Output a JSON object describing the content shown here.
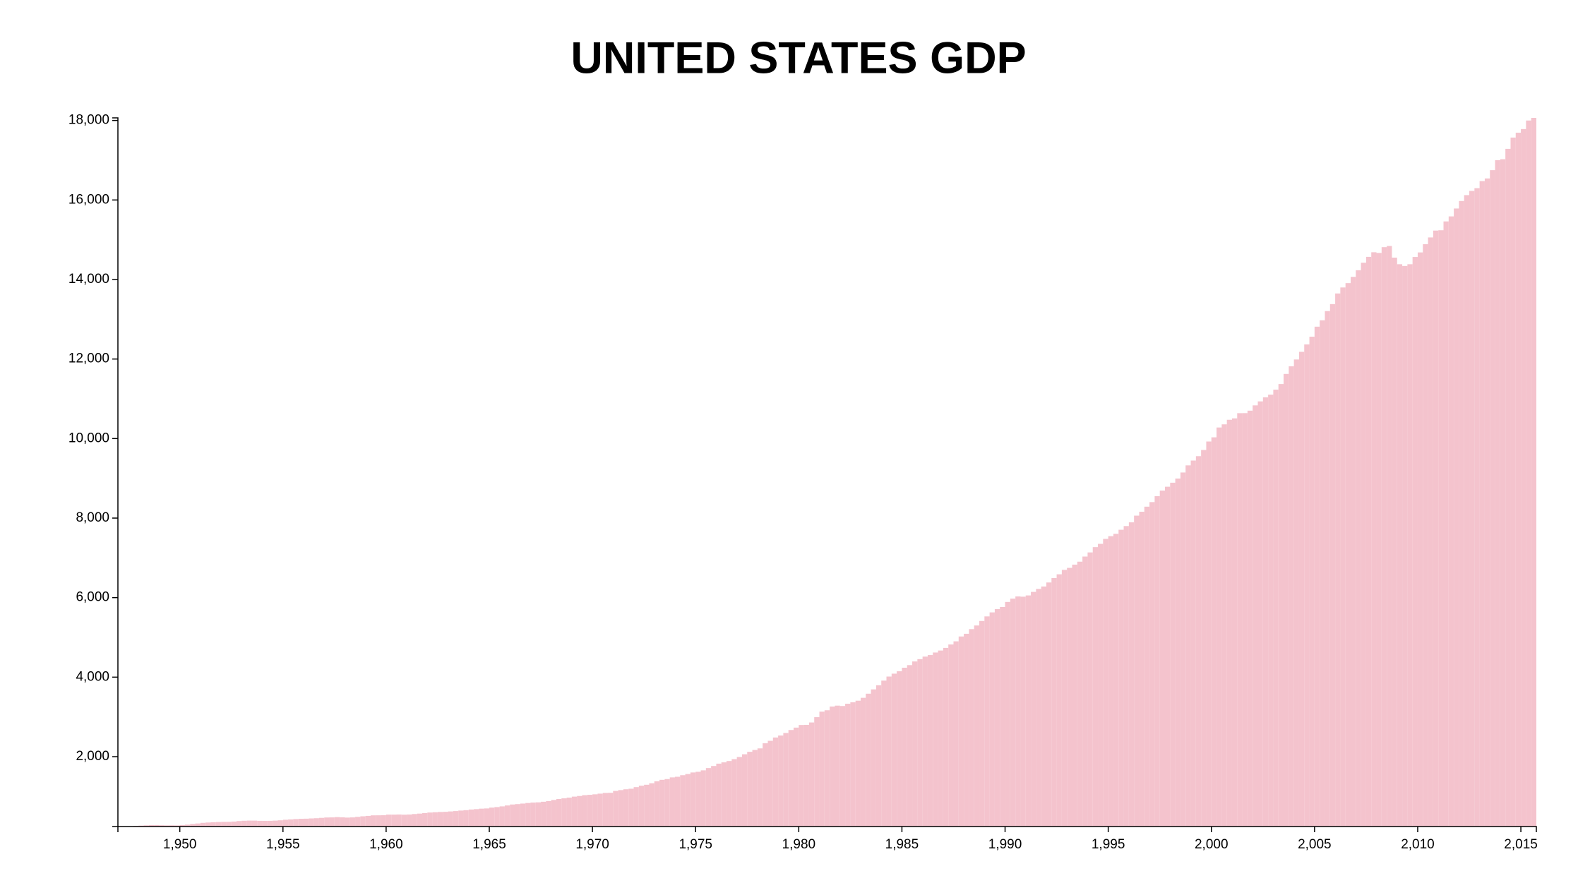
{
  "chart_data": {
    "type": "bar",
    "title": "UNITED STATES GDP",
    "color": "#f4c3cd",
    "xlim": [
      1947,
      2015.75
    ],
    "ylim": [
      243.1,
      18064.7
    ],
    "xticks": [
      {
        "value": 1950,
        "label": "1,950"
      },
      {
        "value": 1955,
        "label": "1,955"
      },
      {
        "value": 1960,
        "label": "1,960"
      },
      {
        "value": 1965,
        "label": "1,965"
      },
      {
        "value": 1970,
        "label": "1,970"
      },
      {
        "value": 1975,
        "label": "1,975"
      },
      {
        "value": 1980,
        "label": "1,980"
      },
      {
        "value": 1985,
        "label": "1,985"
      },
      {
        "value": 1990,
        "label": "1,990"
      },
      {
        "value": 1995,
        "label": "1,995"
      },
      {
        "value": 2000,
        "label": "2,000"
      },
      {
        "value": 2005,
        "label": "2,005"
      },
      {
        "value": 2010,
        "label": "2,010"
      },
      {
        "value": 2015,
        "label": "2,015"
      }
    ],
    "yticks": [
      {
        "value": 2000,
        "label": "2,000"
      },
      {
        "value": 4000,
        "label": "4,000"
      },
      {
        "value": 6000,
        "label": "6,000"
      },
      {
        "value": 8000,
        "label": "8,000"
      },
      {
        "value": 10000,
        "label": "10,000"
      },
      {
        "value": 12000,
        "label": "12,000"
      },
      {
        "value": 14000,
        "label": "14,000"
      },
      {
        "value": 16000,
        "label": "16,000"
      },
      {
        "value": 18000,
        "label": "18,000"
      }
    ],
    "x": [
      1947,
      1947.25,
      1947.5,
      1947.75,
      1948,
      1948.25,
      1948.5,
      1948.75,
      1949,
      1949.25,
      1949.5,
      1949.75,
      1950,
      1950.25,
      1950.5,
      1950.75,
      1951,
      1951.25,
      1951.5,
      1951.75,
      1952,
      1952.25,
      1952.5,
      1952.75,
      1953,
      1953.25,
      1953.5,
      1953.75,
      1954,
      1954.25,
      1954.5,
      1954.75,
      1955,
      1955.25,
      1955.5,
      1955.75,
      1956,
      1956.25,
      1956.5,
      1956.75,
      1957,
      1957.25,
      1957.5,
      1957.75,
      1958,
      1958.25,
      1958.5,
      1958.75,
      1959,
      1959.25,
      1959.5,
      1959.75,
      1960,
      1960.25,
      1960.5,
      1960.75,
      1961,
      1961.25,
      1961.5,
      1961.75,
      1962,
      1962.25,
      1962.5,
      1962.75,
      1963,
      1963.25,
      1963.5,
      1963.75,
      1964,
      1964.25,
      1964.5,
      1964.75,
      1965,
      1965.25,
      1965.5,
      1965.75,
      1966,
      1966.25,
      1966.5,
      1966.75,
      1967,
      1967.25,
      1967.5,
      1967.75,
      1968,
      1968.25,
      1968.5,
      1968.75,
      1969,
      1969.25,
      1969.5,
      1969.75,
      1970,
      1970.25,
      1970.5,
      1970.75,
      1971,
      1971.25,
      1971.5,
      1971.75,
      1972,
      1972.25,
      1972.5,
      1972.75,
      1973,
      1973.25,
      1973.5,
      1973.75,
      1974,
      1974.25,
      1974.5,
      1974.75,
      1975,
      1975.25,
      1975.5,
      1975.75,
      1976,
      1976.25,
      1976.5,
      1976.75,
      1977,
      1977.25,
      1977.5,
      1977.75,
      1978,
      1978.25,
      1978.5,
      1978.75,
      1979,
      1979.25,
      1979.5,
      1979.75,
      1980,
      1980.25,
      1980.5,
      1980.75,
      1981,
      1981.25,
      1981.5,
      1981.75,
      1982,
      1982.25,
      1982.5,
      1982.75,
      1983,
      1983.25,
      1983.5,
      1983.75,
      1984,
      1984.25,
      1984.5,
      1984.75,
      1985,
      1985.25,
      1985.5,
      1985.75,
      1986,
      1986.25,
      1986.5,
      1986.75,
      1987,
      1987.25,
      1987.5,
      1987.75,
      1988,
      1988.25,
      1988.5,
      1988.75,
      1989,
      1989.25,
      1989.5,
      1989.75,
      1990,
      1990.25,
      1990.5,
      1990.75,
      1991,
      1991.25,
      1991.5,
      1991.75,
      1992,
      1992.25,
      1992.5,
      1992.75,
      1993,
      1993.25,
      1993.5,
      1993.75,
      1994,
      1994.25,
      1994.5,
      1994.75,
      1995,
      1995.25,
      1995.5,
      1995.75,
      1996,
      1996.25,
      1996.5,
      1996.75,
      1997,
      1997.25,
      1997.5,
      1997.75,
      1998,
      1998.25,
      1998.5,
      1998.75,
      1999,
      1999.25,
      1999.5,
      1999.75,
      2000,
      2000.25,
      2000.5,
      2000.75,
      2001,
      2001.25,
      2001.5,
      2001.75,
      2002,
      2002.25,
      2002.5,
      2002.75,
      2003,
      2003.25,
      2003.5,
      2003.75,
      2004,
      2004.25,
      2004.5,
      2004.75,
      2005,
      2005.25,
      2005.5,
      2005.75,
      2006,
      2006.25,
      2006.5,
      2006.75,
      2007,
      2007.25,
      2007.5,
      2007.75,
      2008,
      2008.25,
      2008.5,
      2008.75,
      2009,
      2009.25,
      2009.5,
      2009.75,
      2010,
      2010.25,
      2010.5,
      2010.75,
      2011,
      2011.25,
      2011.5,
      2011.75,
      2012,
      2012.25,
      2012.5,
      2012.75,
      2013,
      2013.25,
      2013.5,
      2013.75,
      2014,
      2014.25,
      2014.5,
      2014.75,
      2015,
      2015.25,
      2015.5
    ],
    "values": [
      243.1,
      246.3,
      250.1,
      260.3,
      266.2,
      272.9,
      279.5,
      280.7,
      275.4,
      271.7,
      273.3,
      271.0,
      281.2,
      290.7,
      308.5,
      320.3,
      336.4,
      344.5,
      351.8,
      356.6,
      360.2,
      361.4,
      368.1,
      381.2,
      388.5,
      392.3,
      391.7,
      386.5,
      385.9,
      386.7,
      391.6,
      400.3,
      413.8,
      422.2,
      430.9,
      437.8,
      440.5,
      446.8,
      452.0,
      461.3,
      470.6,
      472.8,
      480.3,
      475.7,
      468.4,
      472.8,
      486.7,
      500.4,
      511.1,
      524.2,
      525.2,
      529.3,
      543.3,
      542.7,
      546.0,
      541.1,
      545.9,
      557.4,
      568.2,
      581.6,
      595.2,
      602.6,
      609.6,
      613.1,
      622.7,
      631.8,
      645.0,
      654.8,
      671.1,
      680.8,
      692.8,
      698.4,
      719.2,
      732.4,
      750.2,
      773.1,
      797.3,
      807.2,
      820.8,
      834.9,
      846.0,
      851.1,
      866.6,
      883.2,
      911.1,
      936.3,
      952.3,
      970.1,
      995.4,
      1011.4,
      1032.0,
      1040.7,
      1053.5,
      1070.1,
      1088.5,
      1091.5,
      1137.8,
      1159.4,
      1180.3,
      1193.6,
      1233.8,
      1270.1,
      1293.8,
      1332.0,
      1380.7,
      1417.6,
      1436.8,
      1479.1,
      1494.7,
      1534.2,
      1563.4,
      1603.0,
      1619.6,
      1656.4,
      1713.8,
      1765.9,
      1824.5,
      1856.9,
      1890.5,
      1938.4,
      1992.5,
      2060.2,
      2122.4,
      2168.7,
      2208.7,
      2336.6,
      2398.9,
      2482.2,
      2531.6,
      2595.9,
      2670.4,
      2730.7,
      2796.5,
      2799.9,
      2860.0,
      2993.5,
      3131.8,
      3167.3,
      3261.2,
      3283.5,
      3273.8,
      3331.3,
      3367.1,
      3407.8,
      3480.3,
      3583.8,
      3692.3,
      3796.1,
      3912.8,
      4015.0,
      4087.4,
      4147.6,
      4237.0,
      4302.3,
      4394.6,
      4453.1,
      4516.3,
      4555.2,
      4619.6,
      4669.4,
      4736.2,
      4821.5,
      4900.5,
      5022.7,
      5090.6,
      5207.7,
      5299.5,
      5412.7,
      5527.4,
      5628.4,
      5711.6,
      5763.4,
      5890.8,
      5974.7,
      6029.5,
      6023.3,
      6054.9,
      6143.6,
      6218.4,
      6279.3,
      6380.8,
      6492.3,
      6586.5,
      6697.6,
      6748.2,
      6829.6,
      6904.2,
      7032.8,
      7136.3,
      7269.8,
      7352.3,
      7476.7,
      7545.3,
      7604.9,
      7706.5,
      7799.5,
      7893.1,
      8061.5,
      8159.0,
      8287.1,
      8402.1,
      8551.9,
      8691.8,
      8788.3,
      8889.7,
      8994.7,
      9146.5,
      9325.7,
      9447.1,
      9557.0,
      9712.3,
      9926.1,
      10031.0,
      10278.3,
      10357.4,
      10472.3,
      10508.1,
      10638.4,
      10639.5,
      10701.3,
      10834.4,
      10934.8,
      11037.1,
      11103.8,
      11230.1,
      11370.7,
      11625.1,
      11816.8,
      11988.4,
      12181.4,
      12367.7,
      12562.2,
      12813.7,
      12974.1,
      13205.4,
      13381.6,
      13648.9,
      13799.8,
      13908.5,
      14066.4,
      14233.2,
      14422.3,
      14569.7,
      14685.3,
      14668.4,
      14813.0,
      14843.0,
      14549.9,
      14383.9,
      14340.4,
      14384.1,
      14566.5,
      14681.1,
      14888.6,
      15057.7,
      15230.2,
      15238.4,
      15460.9,
      15587.1,
      15785.3,
      15973.9,
      16121.9,
      16227.9,
      16297.3,
      16475.4,
      16541.4,
      16749.3,
      16999.9,
      17025.2,
      17285.6,
      17569.4,
      17692.2,
      17783.6,
      17998.3,
      18064.7
    ]
  }
}
